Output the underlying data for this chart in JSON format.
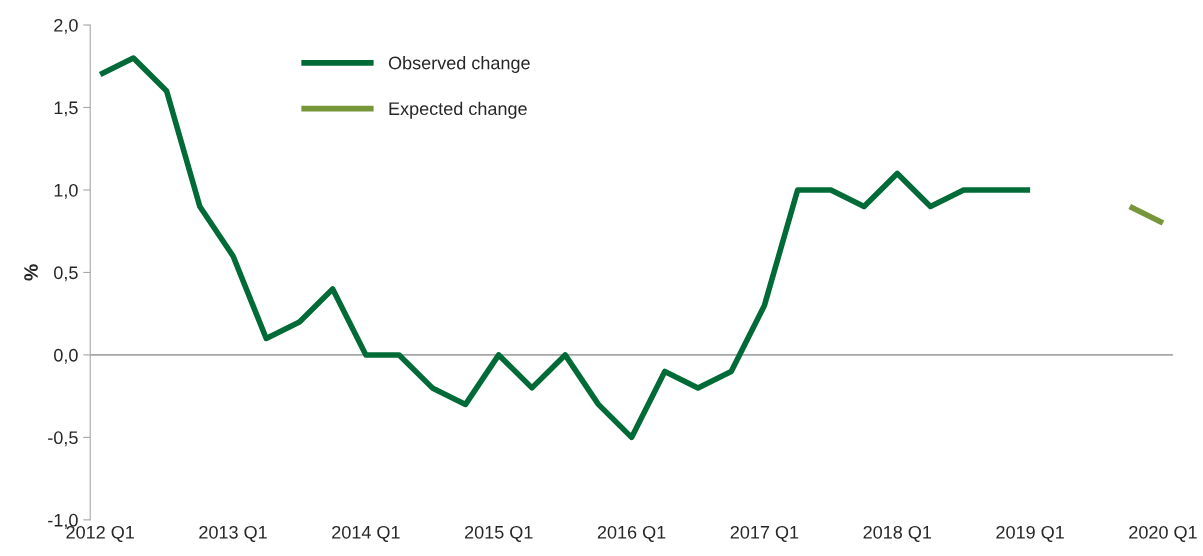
{
  "chart_data": {
    "type": "line",
    "ylabel": "%",
    "categories": [
      "2012 Q1",
      null,
      null,
      null,
      "2013 Q1",
      null,
      null,
      null,
      "2014 Q1",
      null,
      null,
      null,
      "2015 Q1",
      null,
      null,
      null,
      "2016 Q1",
      null,
      null,
      null,
      "2017 Q1",
      null,
      null,
      null,
      "2018 Q1",
      null,
      null,
      null,
      "2019 Q1",
      null,
      null,
      null,
      "2020 Q1"
    ],
    "series": [
      {
        "name": "Observed change",
        "color": "#006b36",
        "values": [
          1.7,
          1.8,
          1.6,
          0.9,
          0.6,
          0.1,
          0.2,
          0.4,
          0.0,
          0.0,
          -0.2,
          -0.3,
          0.0,
          -0.2,
          0.0,
          -0.3,
          -0.5,
          -0.1,
          -0.2,
          -0.1,
          0.3,
          1.0,
          1.0,
          0.9,
          1.1,
          0.9,
          1.0,
          1.0,
          1.0,
          null,
          null,
          null,
          null
        ]
      },
      {
        "name": "Expected change",
        "color": "#77963a",
        "values": [
          null,
          null,
          null,
          null,
          null,
          null,
          null,
          null,
          null,
          null,
          null,
          null,
          null,
          null,
          null,
          null,
          null,
          null,
          null,
          null,
          null,
          null,
          null,
          null,
          null,
          null,
          null,
          null,
          null,
          null,
          null,
          0.9,
          0.8
        ]
      }
    ],
    "ylim": [
      -1.0,
      2.0
    ],
    "yticks": [
      {
        "value": -1.0,
        "label": "-1,0"
      },
      {
        "value": -0.5,
        "label": "-0,5"
      },
      {
        "value": 0.0,
        "label": "0,0"
      },
      {
        "value": 0.5,
        "label": "0,5"
      },
      {
        "value": 1.0,
        "label": "1,0"
      },
      {
        "value": 1.5,
        "label": "1,5"
      },
      {
        "value": 2.0,
        "label": "2,0"
      }
    ],
    "ref_lines": [
      {
        "axis": "y",
        "value": 0.0,
        "color": "#a6a6a6"
      }
    ],
    "grid": false,
    "legend": "top left",
    "line_style": "solid",
    "marker": "none"
  }
}
